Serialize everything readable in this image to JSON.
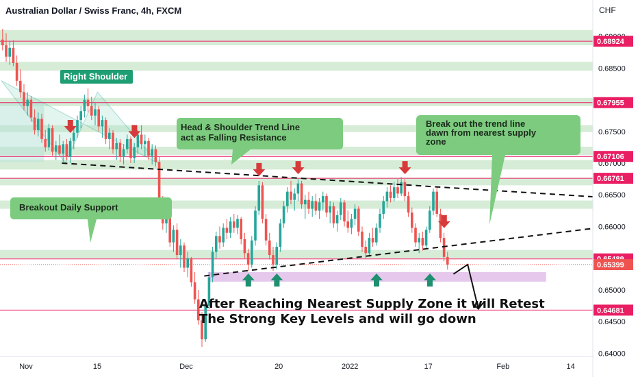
{
  "chart_data": {
    "type": "candlestick",
    "title": "Australian Dollar / Swiss Franc, 4h, FXCM",
    "currency_label": "CHF",
    "y_axis": {
      "range": [
        0.6395,
        0.6925
      ],
      "ticks": [
        {
          "label": "0.69000",
          "value": 0.69
        },
        {
          "label": "0.68500",
          "value": 0.685
        },
        {
          "label": "0.68000",
          "value": 0.68
        },
        {
          "label": "0.67500",
          "value": 0.675
        },
        {
          "label": "0.67000",
          "value": 0.67
        },
        {
          "label": "0.66500",
          "value": 0.665
        },
        {
          "label": "0.66000",
          "value": 0.66
        },
        {
          "label": "0.65500",
          "value": 0.655
        },
        {
          "label": "0.65000",
          "value": 0.65
        },
        {
          "label": "0.64500",
          "value": 0.645
        },
        {
          "label": "0.64000",
          "value": 0.64
        }
      ]
    },
    "x_axis": {
      "ticks": [
        {
          "label": "Nov",
          "bar": 5
        },
        {
          "label": "15",
          "bar": 25
        },
        {
          "label": "Dec",
          "bar": 50
        },
        {
          "label": "20",
          "bar": 76
        },
        {
          "label": "2022",
          "bar": 96
        },
        {
          "label": "17",
          "bar": 118
        },
        {
          "label": "Feb",
          "bar": 139
        },
        {
          "label": "14",
          "bar": 158
        }
      ]
    },
    "level_lines": [
      {
        "label": "0.68924",
        "value": 0.68924
      },
      {
        "label": "0.67955",
        "value": 0.67955
      },
      {
        "label": "0.67106",
        "value": 0.67106
      },
      {
        "label": "0.66761",
        "value": 0.66761
      },
      {
        "label": "0.65489",
        "value": 0.65489
      },
      {
        "label": "0.64681",
        "value": 0.64681
      }
    ],
    "current_price": {
      "label": "0.65399",
      "value": 0.65399
    },
    "zones": [
      {
        "low": 0.6886,
        "high": 0.691
      },
      {
        "low": 0.6846,
        "high": 0.686
      },
      {
        "low": 0.679,
        "high": 0.6803
      },
      {
        "low": 0.6749,
        "high": 0.676
      },
      {
        "low": 0.6713,
        "high": 0.6726
      },
      {
        "low": 0.669,
        "high": 0.6705
      },
      {
        "low": 0.6665,
        "high": 0.6677
      },
      {
        "low": 0.6628,
        "high": 0.6641
      },
      {
        "low": 0.655,
        "high": 0.6563
      }
    ],
    "shoulder_zone": {
      "low": 0.6702,
      "high": 0.6796
    },
    "demand_zone": {
      "low": 0.6513,
      "high": 0.6528,
      "from_bar": 58,
      "to_bar": 153
    },
    "annotations": [
      {
        "id": "right-shoulder",
        "text": "Right Shoulder"
      },
      {
        "id": "hs-trendline",
        "lines": [
          "Head & Shoulder Trend Line",
          "act as Falling Resistance"
        ]
      },
      {
        "id": "breakout-trend",
        "lines": [
          "Break out the trend line",
          "dawn from nearest supply",
          "zone"
        ]
      },
      {
        "id": "breakout-support",
        "text": "Breakout Daily Support"
      },
      {
        "id": "forecast",
        "lines": [
          "After Reaching Nearest Supply Zone it will Retest",
          "The Strong Key Levels and will go down"
        ]
      }
    ],
    "down_arrow_bars": [
      19,
      37,
      72,
      83,
      113,
      124
    ],
    "up_arrow_bars": [
      69,
      77,
      105,
      120
    ],
    "trendlines": [
      {
        "style": "dashed",
        "from": {
          "bar": 17,
          "value": 0.67
        },
        "to": {
          "bar": 172,
          "value": 0.6647
        }
      },
      {
        "style": "dashed",
        "from": {
          "bar": 57,
          "value": 0.6522
        },
        "to": {
          "bar": 172,
          "value": 0.6597
        }
      }
    ],
    "forecast_path": [
      {
        "bar": 127,
        "value": 0.6525
      },
      {
        "bar": 131,
        "value": 0.654
      },
      {
        "bar": 134,
        "value": 0.647
      }
    ],
    "colors": {
      "bull": "#26a69a",
      "bear": "#ef5350",
      "zone": "#c8e6c9",
      "level": "#e91e63",
      "demand": "#e1bee7",
      "teal_label": "#1e9e73",
      "green_label": "#7ccb7f",
      "up_arrow": "#1e8f6f",
      "down_arrow": "#d63a3a"
    },
    "series": [
      {
        "o": 0.6895,
        "h": 0.6912,
        "l": 0.6878,
        "c": 0.6886
      },
      {
        "o": 0.6886,
        "h": 0.6905,
        "l": 0.686,
        "c": 0.6868
      },
      {
        "o": 0.6868,
        "h": 0.6893,
        "l": 0.6855,
        "c": 0.6882
      },
      {
        "o": 0.6882,
        "h": 0.6894,
        "l": 0.6853,
        "c": 0.6858
      },
      {
        "o": 0.6858,
        "h": 0.687,
        "l": 0.6822,
        "c": 0.683
      },
      {
        "o": 0.683,
        "h": 0.6848,
        "l": 0.6803,
        "c": 0.6812
      },
      {
        "o": 0.6812,
        "h": 0.6825,
        "l": 0.6783,
        "c": 0.679
      },
      {
        "o": 0.679,
        "h": 0.6812,
        "l": 0.6775,
        "c": 0.68
      },
      {
        "o": 0.68,
        "h": 0.6806,
        "l": 0.6765,
        "c": 0.6772
      },
      {
        "o": 0.6772,
        "h": 0.6785,
        "l": 0.6745,
        "c": 0.6752
      },
      {
        "o": 0.6752,
        "h": 0.678,
        "l": 0.6742,
        "c": 0.677
      },
      {
        "o": 0.677,
        "h": 0.6778,
        "l": 0.6732,
        "c": 0.6738
      },
      {
        "o": 0.6738,
        "h": 0.6752,
        "l": 0.6718,
        "c": 0.6725
      },
      {
        "o": 0.6725,
        "h": 0.6762,
        "l": 0.672,
        "c": 0.6755
      },
      {
        "o": 0.6755,
        "h": 0.676,
        "l": 0.6712,
        "c": 0.6718
      },
      {
        "o": 0.6718,
        "h": 0.6735,
        "l": 0.6705,
        "c": 0.6728
      },
      {
        "o": 0.6728,
        "h": 0.6745,
        "l": 0.6712,
        "c": 0.6715
      },
      {
        "o": 0.6715,
        "h": 0.6735,
        "l": 0.6702,
        "c": 0.673
      },
      {
        "o": 0.673,
        "h": 0.6738,
        "l": 0.6705,
        "c": 0.671
      },
      {
        "o": 0.671,
        "h": 0.674,
        "l": 0.67,
        "c": 0.6735
      },
      {
        "o": 0.6735,
        "h": 0.6755,
        "l": 0.6722,
        "c": 0.6748
      },
      {
        "o": 0.6748,
        "h": 0.6775,
        "l": 0.674,
        "c": 0.6768
      },
      {
        "o": 0.6768,
        "h": 0.679,
        "l": 0.6755,
        "c": 0.6782
      },
      {
        "o": 0.6782,
        "h": 0.6808,
        "l": 0.6772,
        "c": 0.68
      },
      {
        "o": 0.68,
        "h": 0.6818,
        "l": 0.678,
        "c": 0.679
      },
      {
        "o": 0.679,
        "h": 0.6805,
        "l": 0.6768,
        "c": 0.6775
      },
      {
        "o": 0.6775,
        "h": 0.6795,
        "l": 0.676,
        "c": 0.6785
      },
      {
        "o": 0.6785,
        "h": 0.679,
        "l": 0.675,
        "c": 0.6758
      },
      {
        "o": 0.6758,
        "h": 0.6775,
        "l": 0.674,
        "c": 0.6768
      },
      {
        "o": 0.6768,
        "h": 0.6772,
        "l": 0.673,
        "c": 0.6738
      },
      {
        "o": 0.6738,
        "h": 0.6755,
        "l": 0.6722,
        "c": 0.6748
      },
      {
        "o": 0.6748,
        "h": 0.6752,
        "l": 0.6715,
        "c": 0.6722
      },
      {
        "o": 0.6722,
        "h": 0.674,
        "l": 0.6705,
        "c": 0.6732
      },
      {
        "o": 0.6732,
        "h": 0.6738,
        "l": 0.6702,
        "c": 0.671
      },
      {
        "o": 0.671,
        "h": 0.673,
        "l": 0.6698,
        "c": 0.6722
      },
      {
        "o": 0.6722,
        "h": 0.6745,
        "l": 0.6715,
        "c": 0.6738
      },
      {
        "o": 0.6738,
        "h": 0.6742,
        "l": 0.67,
        "c": 0.6708
      },
      {
        "o": 0.6708,
        "h": 0.6732,
        "l": 0.67,
        "c": 0.6725
      },
      {
        "o": 0.6725,
        "h": 0.6752,
        "l": 0.6715,
        "c": 0.6745
      },
      {
        "o": 0.6745,
        "h": 0.676,
        "l": 0.6722,
        "c": 0.673
      },
      {
        "o": 0.673,
        "h": 0.6745,
        "l": 0.671,
        "c": 0.6735
      },
      {
        "o": 0.6735,
        "h": 0.674,
        "l": 0.6705,
        "c": 0.6712
      },
      {
        "o": 0.6712,
        "h": 0.673,
        "l": 0.6698,
        "c": 0.6722
      },
      {
        "o": 0.6722,
        "h": 0.6728,
        "l": 0.6695,
        "c": 0.6702
      },
      {
        "o": 0.6702,
        "h": 0.671,
        "l": 0.6625,
        "c": 0.6635
      },
      {
        "o": 0.6635,
        "h": 0.6648,
        "l": 0.6595,
        "c": 0.6605
      },
      {
        "o": 0.6605,
        "h": 0.664,
        "l": 0.659,
        "c": 0.663
      },
      {
        "o": 0.663,
        "h": 0.6638,
        "l": 0.6568,
        "c": 0.6575
      },
      {
        "o": 0.6575,
        "h": 0.6602,
        "l": 0.656,
        "c": 0.6595
      },
      {
        "o": 0.6595,
        "h": 0.6605,
        "l": 0.6548,
        "c": 0.6555
      },
      {
        "o": 0.6555,
        "h": 0.658,
        "l": 0.6535,
        "c": 0.657
      },
      {
        "o": 0.657,
        "h": 0.6575,
        "l": 0.6528,
        "c": 0.6535
      },
      {
        "o": 0.6535,
        "h": 0.656,
        "l": 0.652,
        "c": 0.655
      },
      {
        "o": 0.655,
        "h": 0.6552,
        "l": 0.6505,
        "c": 0.6512
      },
      {
        "o": 0.6512,
        "h": 0.6528,
        "l": 0.6478,
        "c": 0.6485
      },
      {
        "o": 0.6485,
        "h": 0.65,
        "l": 0.6445,
        "c": 0.6452
      },
      {
        "o": 0.6452,
        "h": 0.6465,
        "l": 0.641,
        "c": 0.6422
      },
      {
        "o": 0.6422,
        "h": 0.6482,
        "l": 0.6418,
        "c": 0.6475
      },
      {
        "o": 0.6475,
        "h": 0.6528,
        "l": 0.647,
        "c": 0.652
      },
      {
        "o": 0.652,
        "h": 0.6568,
        "l": 0.6512,
        "c": 0.656
      },
      {
        "o": 0.656,
        "h": 0.6592,
        "l": 0.655,
        "c": 0.6585
      },
      {
        "o": 0.6585,
        "h": 0.66,
        "l": 0.6565,
        "c": 0.6575
      },
      {
        "o": 0.6575,
        "h": 0.6605,
        "l": 0.6568,
        "c": 0.6598
      },
      {
        "o": 0.6598,
        "h": 0.6612,
        "l": 0.658,
        "c": 0.659
      },
      {
        "o": 0.659,
        "h": 0.6615,
        "l": 0.6582,
        "c": 0.6608
      },
      {
        "o": 0.6608,
        "h": 0.662,
        "l": 0.659,
        "c": 0.6598
      },
      {
        "o": 0.6598,
        "h": 0.6618,
        "l": 0.6588,
        "c": 0.6612
      },
      {
        "o": 0.6612,
        "h": 0.6615,
        "l": 0.6572,
        "c": 0.658
      },
      {
        "o": 0.658,
        "h": 0.659,
        "l": 0.655,
        "c": 0.6558
      },
      {
        "o": 0.6558,
        "h": 0.6565,
        "l": 0.653,
        "c": 0.654
      },
      {
        "o": 0.654,
        "h": 0.6585,
        "l": 0.6535,
        "c": 0.6578
      },
      {
        "o": 0.6578,
        "h": 0.6632,
        "l": 0.657,
        "c": 0.6625
      },
      {
        "o": 0.6625,
        "h": 0.6672,
        "l": 0.6618,
        "c": 0.6665
      },
      {
        "o": 0.6665,
        "h": 0.667,
        "l": 0.6605,
        "c": 0.6612
      },
      {
        "o": 0.6612,
        "h": 0.662,
        "l": 0.657,
        "c": 0.6578
      },
      {
        "o": 0.6578,
        "h": 0.659,
        "l": 0.6548,
        "c": 0.6555
      },
      {
        "o": 0.6555,
        "h": 0.6568,
        "l": 0.653,
        "c": 0.654
      },
      {
        "o": 0.654,
        "h": 0.6575,
        "l": 0.6532,
        "c": 0.6568
      },
      {
        "o": 0.6568,
        "h": 0.6612,
        "l": 0.656,
        "c": 0.6605
      },
      {
        "o": 0.6605,
        "h": 0.664,
        "l": 0.6598,
        "c": 0.6632
      },
      {
        "o": 0.6632,
        "h": 0.6662,
        "l": 0.6622,
        "c": 0.6655
      },
      {
        "o": 0.6655,
        "h": 0.6672,
        "l": 0.6635,
        "c": 0.6642
      },
      {
        "o": 0.6642,
        "h": 0.666,
        "l": 0.6625,
        "c": 0.6652
      },
      {
        "o": 0.6652,
        "h": 0.6675,
        "l": 0.664,
        "c": 0.6668
      },
      {
        "o": 0.6668,
        "h": 0.6672,
        "l": 0.6628,
        "c": 0.6635
      },
      {
        "o": 0.6635,
        "h": 0.665,
        "l": 0.6612,
        "c": 0.6642
      },
      {
        "o": 0.6642,
        "h": 0.6655,
        "l": 0.662,
        "c": 0.6628
      },
      {
        "o": 0.6628,
        "h": 0.6648,
        "l": 0.6615,
        "c": 0.664
      },
      {
        "o": 0.664,
        "h": 0.6652,
        "l": 0.6618,
        "c": 0.6625
      },
      {
        "o": 0.6625,
        "h": 0.6645,
        "l": 0.6612,
        "c": 0.6638
      },
      {
        "o": 0.6638,
        "h": 0.6655,
        "l": 0.6625,
        "c": 0.6648
      },
      {
        "o": 0.6648,
        "h": 0.6652,
        "l": 0.6615,
        "c": 0.6622
      },
      {
        "o": 0.6622,
        "h": 0.664,
        "l": 0.6605,
        "c": 0.6632
      },
      {
        "o": 0.6632,
        "h": 0.6638,
        "l": 0.6598,
        "c": 0.6605
      },
      {
        "o": 0.6605,
        "h": 0.6625,
        "l": 0.6592,
        "c": 0.6618
      },
      {
        "o": 0.6618,
        "h": 0.6645,
        "l": 0.661,
        "c": 0.6638
      },
      {
        "o": 0.6638,
        "h": 0.6642,
        "l": 0.66,
        "c": 0.6608
      },
      {
        "o": 0.6608,
        "h": 0.6625,
        "l": 0.659,
        "c": 0.6598
      },
      {
        "o": 0.6598,
        "h": 0.662,
        "l": 0.6588,
        "c": 0.6612
      },
      {
        "o": 0.6612,
        "h": 0.6635,
        "l": 0.6602,
        "c": 0.6628
      },
      {
        "o": 0.6628,
        "h": 0.6632,
        "l": 0.6585,
        "c": 0.6592
      },
      {
        "o": 0.6592,
        "h": 0.66,
        "l": 0.656,
        "c": 0.6568
      },
      {
        "o": 0.6568,
        "h": 0.6578,
        "l": 0.655,
        "c": 0.6558
      },
      {
        "o": 0.6558,
        "h": 0.659,
        "l": 0.6552,
        "c": 0.6582
      },
      {
        "o": 0.6582,
        "h": 0.6598,
        "l": 0.6568,
        "c": 0.6575
      },
      {
        "o": 0.6575,
        "h": 0.6605,
        "l": 0.657,
        "c": 0.6598
      },
      {
        "o": 0.6598,
        "h": 0.6628,
        "l": 0.659,
        "c": 0.662
      },
      {
        "o": 0.662,
        "h": 0.6648,
        "l": 0.6612,
        "c": 0.664
      },
      {
        "o": 0.664,
        "h": 0.6662,
        "l": 0.663,
        "c": 0.6655
      },
      {
        "o": 0.6655,
        "h": 0.6665,
        "l": 0.6638,
        "c": 0.6645
      },
      {
        "o": 0.6645,
        "h": 0.667,
        "l": 0.664,
        "c": 0.6662
      },
      {
        "o": 0.6662,
        "h": 0.6675,
        "l": 0.6645,
        "c": 0.6652
      },
      {
        "o": 0.6652,
        "h": 0.6678,
        "l": 0.6648,
        "c": 0.667
      },
      {
        "o": 0.667,
        "h": 0.6675,
        "l": 0.664,
        "c": 0.6648
      },
      {
        "o": 0.6648,
        "h": 0.6655,
        "l": 0.6615,
        "c": 0.6622
      },
      {
        "o": 0.6622,
        "h": 0.663,
        "l": 0.659,
        "c": 0.6598
      },
      {
        "o": 0.6598,
        "h": 0.6605,
        "l": 0.6568,
        "c": 0.6575
      },
      {
        "o": 0.6575,
        "h": 0.659,
        "l": 0.6558,
        "c": 0.6582
      },
      {
        "o": 0.6582,
        "h": 0.6592,
        "l": 0.6562,
        "c": 0.657
      },
      {
        "o": 0.657,
        "h": 0.66,
        "l": 0.6565,
        "c": 0.6595
      },
      {
        "o": 0.6595,
        "h": 0.6632,
        "l": 0.659,
        "c": 0.6625
      },
      {
        "o": 0.6625,
        "h": 0.666,
        "l": 0.6618,
        "c": 0.6655
      },
      {
        "o": 0.6655,
        "h": 0.6662,
        "l": 0.6615,
        "c": 0.662
      },
      {
        "o": 0.662,
        "h": 0.6628,
        "l": 0.6575,
        "c": 0.6582
      },
      {
        "o": 0.6582,
        "h": 0.659,
        "l": 0.6545,
        "c": 0.6552
      },
      {
        "o": 0.6552,
        "h": 0.656,
        "l": 0.6532,
        "c": 0.654
      }
    ]
  }
}
